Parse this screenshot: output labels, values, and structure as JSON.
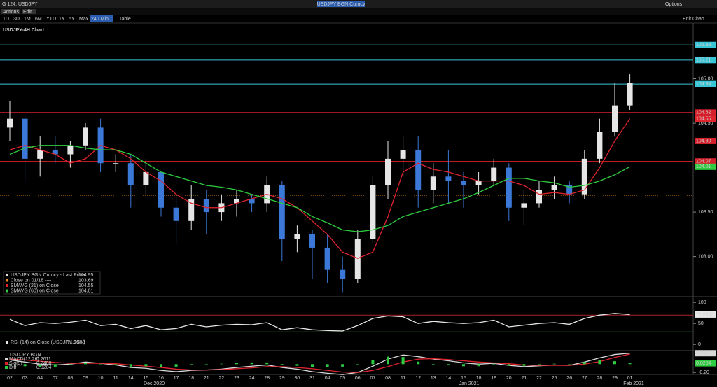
{
  "ui": {
    "window": "G 124: USDJPY",
    "security": "USDJPY BGN Curncy",
    "options": "Options",
    "actions": "Actions",
    "edit": "Edit",
    "periods": [
      "1D",
      "3D",
      "1M",
      "6M",
      "YTD",
      "1Y",
      "5Y",
      "Max"
    ],
    "interval": "240 Min",
    "table": "Table",
    "edit_chart": "Edit Chart"
  },
  "x_axis": {
    "categories": [
      "02",
      "03",
      "04",
      "07",
      "08",
      "09",
      "10",
      "11",
      "14",
      "15",
      "16",
      "17",
      "18",
      "21",
      "22",
      "23",
      "24",
      "28",
      "29",
      "30",
      "31",
      "04",
      "05",
      "06",
      "07",
      "08",
      "11",
      "12",
      "13",
      "14",
      "15",
      "18",
      "19",
      "20",
      "21",
      "22",
      "25",
      "26",
      "27",
      "28",
      "29",
      "01"
    ],
    "months": [
      "Dec 2020",
      "Jan 2021",
      "Feb 2021"
    ]
  },
  "chart_data": [
    {
      "type": "candlestick",
      "title": "USDJPY-4H Chart",
      "ylim": [
        102.58,
        105.61
      ],
      "yticks": [
        {
          "value": 103,
          "label": "103.00"
        },
        {
          "value": 103.5,
          "label": "103.50"
        },
        {
          "value": 104.5,
          "label": "104.50"
        },
        {
          "value": 105,
          "label": "105.00"
        }
      ],
      "levels": [
        {
          "value": 105.38,
          "label": "105.38",
          "color": "#38c6d6"
        },
        {
          "value": 105.21,
          "label": "105.21",
          "color": "#38c6d6"
        },
        {
          "value": 104.94,
          "label": "104.94",
          "color": "#38c6d6"
        },
        {
          "value": 104.62,
          "label": "104.62",
          "color": "#d4202a"
        },
        {
          "value": 104.3,
          "label": "104.30",
          "color": "#d4202a"
        },
        {
          "value": 104.07,
          "label": "104.07",
          "color": "#d4202a"
        }
      ],
      "reference": {
        "name": "Close on 01/18 ----",
        "value": 103.69,
        "color": "#f08c1a"
      },
      "series": [
        {
          "name": "USDJPY BGN Curncy - Last Price",
          "up_color": "#e6e6e6",
          "down_color": "#3b78d8",
          "open": [
            104.45,
            104.55,
            104.1,
            104.2,
            104.15,
            104.25,
            104.45,
            104.05,
            104.05,
            103.8,
            103.95,
            103.55,
            103.4,
            103.65,
            103.5,
            103.6,
            103.65,
            103.6,
            103.8,
            103.2,
            103.25,
            103.1,
            102.85,
            102.75,
            103.2,
            103.8,
            104.1,
            104.2,
            103.75,
            103.9,
            103.85,
            103.8,
            103.85,
            104.0,
            103.55,
            103.6,
            103.75,
            103.8,
            103.7,
            104.1,
            104.4,
            104.7
          ],
          "high": [
            104.75,
            104.6,
            104.35,
            104.35,
            104.3,
            104.5,
            104.55,
            104.15,
            104.15,
            104.1,
            103.95,
            103.7,
            103.8,
            103.75,
            103.7,
            103.75,
            103.7,
            103.9,
            103.85,
            103.35,
            103.3,
            103.25,
            103.0,
            103.3,
            103.9,
            104.3,
            104.35,
            104.35,
            104.05,
            104.2,
            103.95,
            103.95,
            104.1,
            104.05,
            103.75,
            103.85,
            103.9,
            103.85,
            104.2,
            104.55,
            104.95,
            105.05
          ],
          "low": [
            104.3,
            103.85,
            103.9,
            104.05,
            104.0,
            104.2,
            103.95,
            103.95,
            103.55,
            103.7,
            103.45,
            103.15,
            103.3,
            103.25,
            103.4,
            103.45,
            103.5,
            103.5,
            102.95,
            103.05,
            102.75,
            102.7,
            102.6,
            102.7,
            103.15,
            103.65,
            103.9,
            103.55,
            103.6,
            103.6,
            103.55,
            103.7,
            103.8,
            103.4,
            103.35,
            103.55,
            103.65,
            103.6,
            103.65,
            104.05,
            104.35,
            104.65
          ],
          "close": [
            104.55,
            104.1,
            104.2,
            104.15,
            104.25,
            104.45,
            104.05,
            104.05,
            103.8,
            103.95,
            103.55,
            103.4,
            103.65,
            103.5,
            103.6,
            103.65,
            103.6,
            103.8,
            103.2,
            103.25,
            103.1,
            102.85,
            102.75,
            103.2,
            103.8,
            104.1,
            104.2,
            103.75,
            103.9,
            103.85,
            103.8,
            103.85,
            104.0,
            103.55,
            103.6,
            103.75,
            103.8,
            103.7,
            104.1,
            104.4,
            104.7,
            104.95
          ]
        },
        {
          "name": "SMAVG (21) on Close",
          "color": "#e0242e",
          "last_box": true,
          "values": [
            104.2,
            104.25,
            104.2,
            104.15,
            104.05,
            104.1,
            104.25,
            104.2,
            104.1,
            103.95,
            103.85,
            103.7,
            103.6,
            103.55,
            103.55,
            103.6,
            103.65,
            103.7,
            103.65,
            103.55,
            103.4,
            103.25,
            103.05,
            102.98,
            103.05,
            103.45,
            103.95,
            104.05,
            103.98,
            103.95,
            103.9,
            103.85,
            103.85,
            103.85,
            103.8,
            103.7,
            103.72,
            103.7,
            103.75,
            104.0,
            104.3,
            104.55
          ]
        },
        {
          "name": "SMAVG (60) on Close",
          "color": "#2ecc40",
          "last_box": true,
          "values": [
            104.15,
            104.22,
            104.25,
            104.25,
            104.25,
            104.22,
            104.2,
            104.2,
            104.15,
            104.05,
            103.95,
            103.9,
            103.85,
            103.8,
            103.78,
            103.75,
            103.7,
            103.65,
            103.6,
            103.55,
            103.45,
            103.38,
            103.3,
            103.28,
            103.3,
            103.35,
            103.45,
            103.5,
            103.55,
            103.6,
            103.65,
            103.72,
            103.8,
            103.88,
            103.88,
            103.85,
            103.83,
            103.78,
            103.8,
            103.85,
            103.92,
            104.01
          ]
        }
      ]
    },
    {
      "type": "line",
      "ylim": [
        -13,
        107
      ],
      "yticks": [
        0,
        50,
        100
      ],
      "levels": [
        {
          "value": 70,
          "color": "#a8232a"
        },
        {
          "value": 30,
          "color": "#1f7a35"
        }
      ],
      "series": [
        {
          "name": "RSI (14) on Close (USDJPY BGN)",
          "color": "#e6e6e6",
          "last_box": true,
          "values": [
            60,
            45,
            52,
            50,
            53,
            58,
            45,
            48,
            38,
            45,
            35,
            38,
            48,
            42,
            46,
            48,
            47,
            52,
            35,
            40,
            35,
            33,
            32,
            45,
            62,
            68,
            66,
            50,
            55,
            52,
            50,
            52,
            58,
            42,
            46,
            50,
            52,
            48,
            62,
            70,
            74,
            71.2963
          ]
        }
      ]
    },
    {
      "type": "combo",
      "legend_title": "USDJPY BGN",
      "ylim": [
        -0.23,
        0.29
      ],
      "yticks": [
        {
          "value": -0.2,
          "label": "-0.20"
        }
      ],
      "series": [
        {
          "name": "MACD(12,26)",
          "kind": "line",
          "color": "#d9d9d9",
          "last_box": true,
          "values": [
            0.1,
            0.05,
            0.0,
            -0.02,
            0.0,
            0.05,
            0.02,
            -0.02,
            -0.08,
            -0.1,
            -0.15,
            -0.18,
            -0.15,
            -0.14,
            -0.12,
            -0.08,
            -0.05,
            -0.02,
            -0.08,
            -0.12,
            -0.18,
            -0.22,
            -0.25,
            -0.2,
            -0.05,
            0.12,
            0.22,
            0.18,
            0.12,
            0.08,
            0.03,
            0.0,
            0.02,
            -0.03,
            -0.06,
            -0.04,
            -0.02,
            -0.03,
            0.05,
            0.15,
            0.23,
            0.2611
          ]
        },
        {
          "name": "Sig(9)",
          "kind": "line",
          "color": "#e0242e",
          "values": [
            0.12,
            0.1,
            0.07,
            0.04,
            0.02,
            0.02,
            0.02,
            0.01,
            -0.02,
            -0.05,
            -0.08,
            -0.12,
            -0.14,
            -0.14,
            -0.13,
            -0.11,
            -0.09,
            -0.06,
            -0.06,
            -0.08,
            -0.11,
            -0.15,
            -0.19,
            -0.2,
            -0.15,
            -0.06,
            0.05,
            0.12,
            0.13,
            0.11,
            0.08,
            0.05,
            0.03,
            0.01,
            -0.02,
            -0.03,
            -0.03,
            -0.03,
            0.0,
            0.06,
            0.16,
            0.2408
          ]
        },
        {
          "name": "Diff",
          "kind": "bar",
          "color": "#2ecc40",
          "last_box": true,
          "values": [
            -0.02,
            -0.05,
            -0.07,
            -0.06,
            -0.02,
            0.03,
            0.0,
            -0.03,
            -0.06,
            -0.05,
            -0.07,
            -0.06,
            -0.01,
            0.0,
            0.01,
            0.03,
            0.04,
            0.04,
            -0.02,
            -0.04,
            -0.07,
            -0.07,
            -0.06,
            0.0,
            0.1,
            0.18,
            0.17,
            0.06,
            -0.01,
            -0.03,
            -0.05,
            -0.05,
            -0.01,
            -0.04,
            -0.04,
            -0.01,
            0.01,
            0.0,
            0.05,
            0.09,
            0.07,
            0.0204
          ]
        }
      ]
    }
  ]
}
